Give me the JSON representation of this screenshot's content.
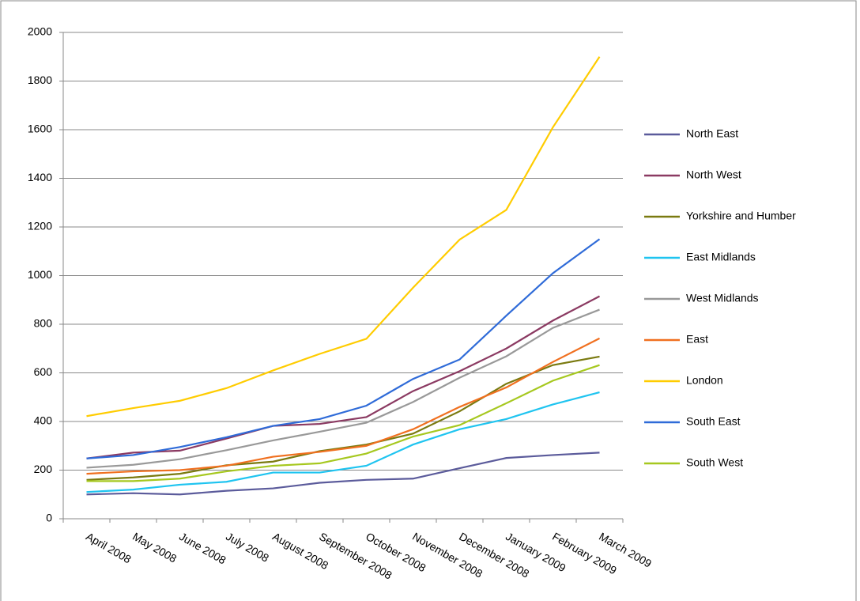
{
  "chart_data": {
    "type": "line",
    "categories": [
      "April 2008",
      "May 2008",
      "June 2008",
      "July 2008",
      "August 2008",
      "September 2008",
      "October 2008",
      "November 2008",
      "December 2008",
      "January 2009",
      "February 2009",
      "March 2009"
    ],
    "series": [
      {
        "name": "North East",
        "color": "#5b5b9b",
        "values": [
          100,
          105,
          100,
          115,
          125,
          148,
          160,
          165,
          208,
          250,
          262,
          272
        ]
      },
      {
        "name": "North West",
        "color": "#8b3a62",
        "values": [
          248,
          272,
          280,
          330,
          382,
          390,
          418,
          525,
          607,
          700,
          815,
          915
        ]
      },
      {
        "name": "Yorkshire and Humber",
        "color": "#7a7a10",
        "values": [
          160,
          170,
          185,
          220,
          235,
          278,
          305,
          350,
          442,
          555,
          632,
          667
        ]
      },
      {
        "name": "East Midlands",
        "color": "#1fc4f0",
        "values": [
          110,
          120,
          140,
          152,
          190,
          190,
          218,
          305,
          368,
          410,
          470,
          520
        ]
      },
      {
        "name": "West Midlands",
        "color": "#999999",
        "values": [
          210,
          222,
          245,
          282,
          322,
          358,
          395,
          480,
          580,
          668,
          785,
          860
        ]
      },
      {
        "name": "East",
        "color": "#f07020",
        "values": [
          185,
          195,
          200,
          218,
          255,
          275,
          300,
          368,
          460,
          540,
          645,
          742
        ]
      },
      {
        "name": "London",
        "color": "#ffcc00",
        "values": [
          422,
          455,
          485,
          537,
          610,
          678,
          740,
          950,
          1148,
          1270,
          1610,
          1900
        ]
      },
      {
        "name": "South East",
        "color": "#2f6bd8",
        "values": [
          248,
          262,
          295,
          335,
          382,
          410,
          465,
          575,
          655,
          835,
          1010,
          1150
        ]
      },
      {
        "name": "South West",
        "color": "#a6c81f",
        "values": [
          155,
          155,
          165,
          195,
          218,
          228,
          268,
          338,
          385,
          475,
          568,
          632
        ]
      }
    ],
    "ylim": [
      0,
      2000
    ],
    "yticks": [
      0,
      200,
      400,
      600,
      800,
      1000,
      1200,
      1400,
      1600,
      1800,
      2000
    ],
    "grid": true,
    "legend": "right"
  }
}
